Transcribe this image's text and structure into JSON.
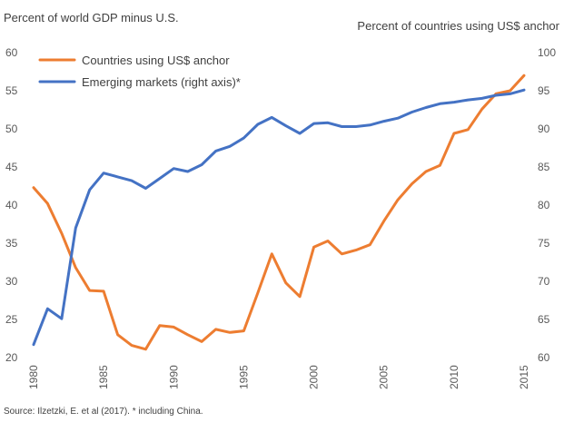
{
  "chart_data": {
    "type": "line",
    "title": "",
    "left_axis_title": "Percent of world GDP minus U.S.",
    "right_axis_title": "Percent of countries using US$ anchor",
    "source": "Source: Ilzetzki, E. et al (2017). * including China.",
    "x_ticks": [
      "1980",
      "1985",
      "1990",
      "1995",
      "2000",
      "2005",
      "2010",
      "2015"
    ],
    "x_tick_values": [
      1980,
      1985,
      1990,
      1995,
      2000,
      2005,
      2010,
      2015
    ],
    "xlim": [
      1980,
      2015
    ],
    "y_left_ticks": [
      "60",
      "55",
      "50",
      "45",
      "40",
      "35",
      "30",
      "25",
      "20"
    ],
    "y_left_tick_values": [
      60,
      55,
      50,
      45,
      40,
      35,
      30,
      25,
      20
    ],
    "y_left_lim": [
      20,
      60
    ],
    "y_right_ticks": [
      "100",
      "95",
      "90",
      "85",
      "80",
      "75",
      "70",
      "65",
      "60"
    ],
    "y_right_tick_values": [
      100,
      95,
      90,
      85,
      80,
      75,
      70,
      65,
      60
    ],
    "y_right_lim": [
      60,
      100
    ],
    "series": [
      {
        "name": "Countries using US$ anchor",
        "axis": "right",
        "color": "#ED7D31",
        "x": [
          1980,
          1981,
          1982,
          1983,
          1984,
          1985,
          1986,
          1987,
          1988,
          1989,
          1990,
          1991,
          1992,
          1993,
          1994,
          1995,
          1996,
          1997,
          1998,
          1999,
          2000,
          2001,
          2002,
          2003,
          2004,
          2005,
          2006,
          2007,
          2008,
          2009,
          2010,
          2011,
          2012,
          2013,
          2014,
          2015
        ],
        "values": [
          82.3,
          80.2,
          76.3,
          71.8,
          68.8,
          68.7,
          63.0,
          61.6,
          61.1,
          64.2,
          64.0,
          63.0,
          62.1,
          63.7,
          63.3,
          63.5,
          68.5,
          73.6,
          69.8,
          68.0,
          74.5,
          75.3,
          73.6,
          74.1,
          74.8,
          77.9,
          80.7,
          82.8,
          84.4,
          85.2,
          89.4,
          89.9,
          92.6,
          94.6,
          95.0,
          97.0
        ]
      },
      {
        "name": "Emerging markets (right axis)*",
        "axis": "left",
        "color": "#4472C4",
        "x": [
          1980,
          1981,
          1982,
          1983,
          1984,
          1985,
          1986,
          1987,
          1988,
          1989,
          1990,
          1991,
          1992,
          1993,
          1994,
          1995,
          1996,
          1997,
          1998,
          1999,
          2000,
          2001,
          2002,
          2003,
          2004,
          2005,
          2006,
          2007,
          2008,
          2009,
          2010,
          2011,
          2012,
          2013,
          2014,
          2015
        ],
        "values": [
          21.7,
          26.4,
          25.1,
          37.0,
          42.0,
          44.2,
          43.7,
          43.2,
          42.2,
          43.5,
          44.8,
          44.4,
          45.3,
          47.1,
          47.7,
          48.8,
          50.6,
          51.5,
          50.4,
          49.4,
          50.7,
          50.8,
          50.3,
          50.3,
          50.5,
          51.0,
          51.4,
          52.2,
          52.8,
          53.3,
          53.5,
          53.8,
          54.0,
          54.4,
          54.6,
          55.1
        ]
      }
    ]
  }
}
